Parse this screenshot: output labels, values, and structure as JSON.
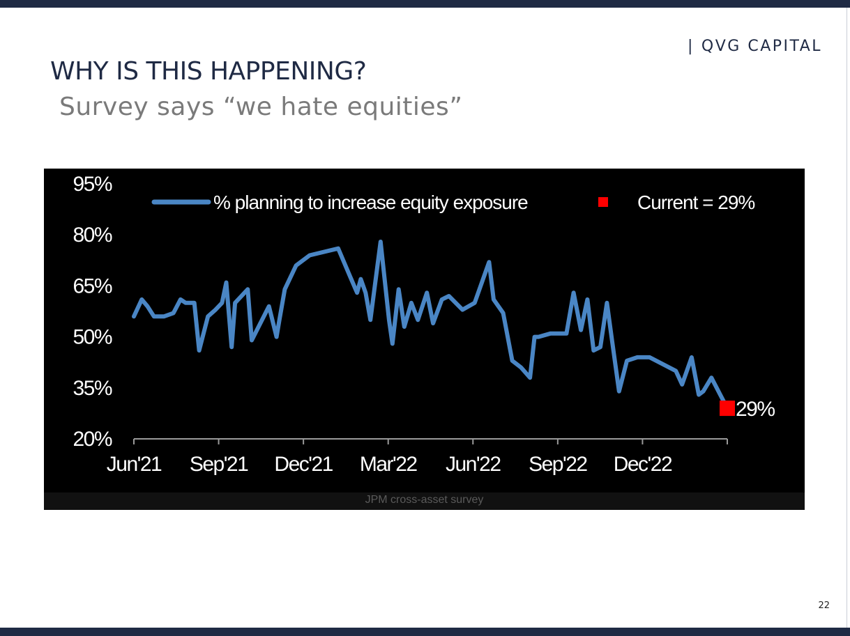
{
  "brand": {
    "separator": "|",
    "name": "QVG CAPITAL"
  },
  "slide": {
    "title": "WHY IS THIS HAPPENING?",
    "subtitle": "Survey says “we hate equities”",
    "page_number": "22"
  },
  "colors": {
    "header_bar": "#1f2a44",
    "series_line": "#4a86c5",
    "current_marker": "#ff0000",
    "chart_background": "#000000"
  },
  "chart_data": {
    "type": "line",
    "title": "",
    "xlabel": "",
    "ylabel": "",
    "ylim": [
      20,
      95
    ],
    "y_ticks": [
      20,
      35,
      50,
      65,
      80,
      95
    ],
    "y_tick_labels": [
      "20%",
      "35%",
      "50%",
      "65%",
      "80%",
      "95%"
    ],
    "x_ticks": [
      0,
      3,
      6,
      9,
      12,
      15,
      18
    ],
    "x_tick_labels": [
      "Jun'21",
      "Sep'21",
      "Dec'21",
      "Mar'22",
      "Jun'22",
      "Sep'22",
      "Dec'22"
    ],
    "xlim": [
      0,
      21
    ],
    "grid": false,
    "legend": {
      "placement": "top",
      "series_label": "% planning to increase equity exposure",
      "current_label": "Current = 29%"
    },
    "series": [
      {
        "name": "% planning to increase equity exposure",
        "x": [
          0.0,
          0.28,
          0.48,
          0.71,
          1.06,
          1.4,
          1.65,
          1.83,
          2.14,
          2.31,
          2.62,
          2.89,
          3.12,
          3.27,
          3.46,
          3.58,
          4.03,
          4.17,
          4.78,
          5.05,
          5.15,
          5.34,
          5.74,
          6.22,
          7.23,
          7.64,
          7.9,
          8.03,
          8.2,
          8.37,
          8.73,
          9.03,
          9.15,
          9.37,
          9.57,
          9.82,
          10.05,
          10.37,
          10.59,
          10.9,
          11.15,
          11.63,
          12.06,
          12.57,
          12.73,
          13.07,
          13.39,
          13.7,
          14.02,
          14.18,
          14.32,
          14.75,
          15.31,
          15.56,
          15.82,
          16.05,
          16.27,
          16.51,
          16.74,
          16.92,
          17.17,
          17.45,
          17.82,
          18.25,
          19.18,
          19.4,
          19.74,
          19.99,
          20.15,
          20.44,
          20.75,
          21.0
        ],
        "y": [
          56,
          61,
          59,
          56,
          56,
          57,
          61,
          60,
          60,
          46,
          56,
          58,
          60,
          66,
          47,
          60,
          64,
          49,
          59,
          50,
          55,
          64,
          71,
          74,
          76,
          68,
          63,
          67,
          63,
          55,
          78,
          55,
          48,
          64,
          53,
          60,
          55,
          63,
          54,
          61,
          62,
          58,
          60,
          72,
          61,
          57,
          43,
          41,
          38,
          50,
          50,
          51,
          51,
          63,
          52,
          61,
          46,
          47,
          60,
          49,
          34,
          43,
          44,
          44,
          40,
          36,
          44,
          33,
          34,
          38,
          33,
          29
        ]
      }
    ],
    "current": {
      "x": 21.0,
      "y": 29,
      "label": "29%"
    },
    "source": "JPM cross-asset survey"
  }
}
